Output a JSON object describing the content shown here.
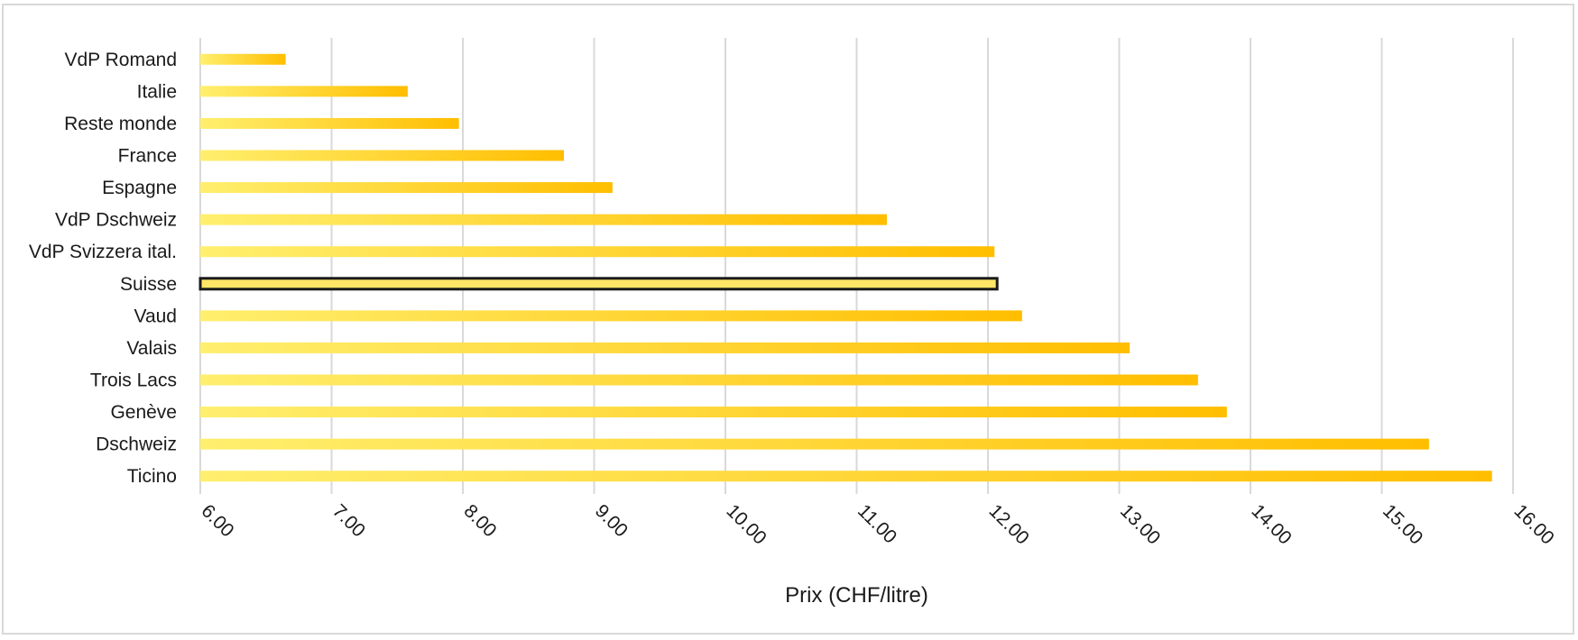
{
  "chart_data": {
    "type": "bar",
    "orientation": "horizontal",
    "title": "",
    "xlabel": "Prix (CHF/litre)",
    "ylabel": "",
    "xlim": [
      6,
      16
    ],
    "x_ticks": [
      6,
      7,
      8,
      9,
      10,
      11,
      12,
      13,
      14,
      15,
      16
    ],
    "x_tick_labels": [
      "6.00",
      "7.00",
      "8.00",
      "9.00",
      "10.00",
      "11.00",
      "12.00",
      "13.00",
      "14.00",
      "15.00",
      "16.00"
    ],
    "grid": "vertical",
    "legend": "none",
    "categories": [
      "VdP Romand",
      "Italie",
      "Reste monde",
      "France",
      "Espagne",
      "VdP Dschweiz",
      "VdP Svizzera ital.",
      "Suisse",
      "Vaud",
      "Valais",
      "Trois Lacs",
      "Genève",
      "Dschweiz",
      "Ticino"
    ],
    "values": [
      6.65,
      7.58,
      7.97,
      8.77,
      9.14,
      11.23,
      12.05,
      12.07,
      12.26,
      13.08,
      13.6,
      13.82,
      15.36,
      15.84
    ],
    "highlighted_category": "Suisse",
    "colors": {
      "bar_start": "#ffef6e",
      "bar_end": "#ffbe00",
      "highlight_fill": "#ffe666",
      "highlight_border": "#1a1a1a",
      "grid": "#d9d9d9"
    }
  }
}
